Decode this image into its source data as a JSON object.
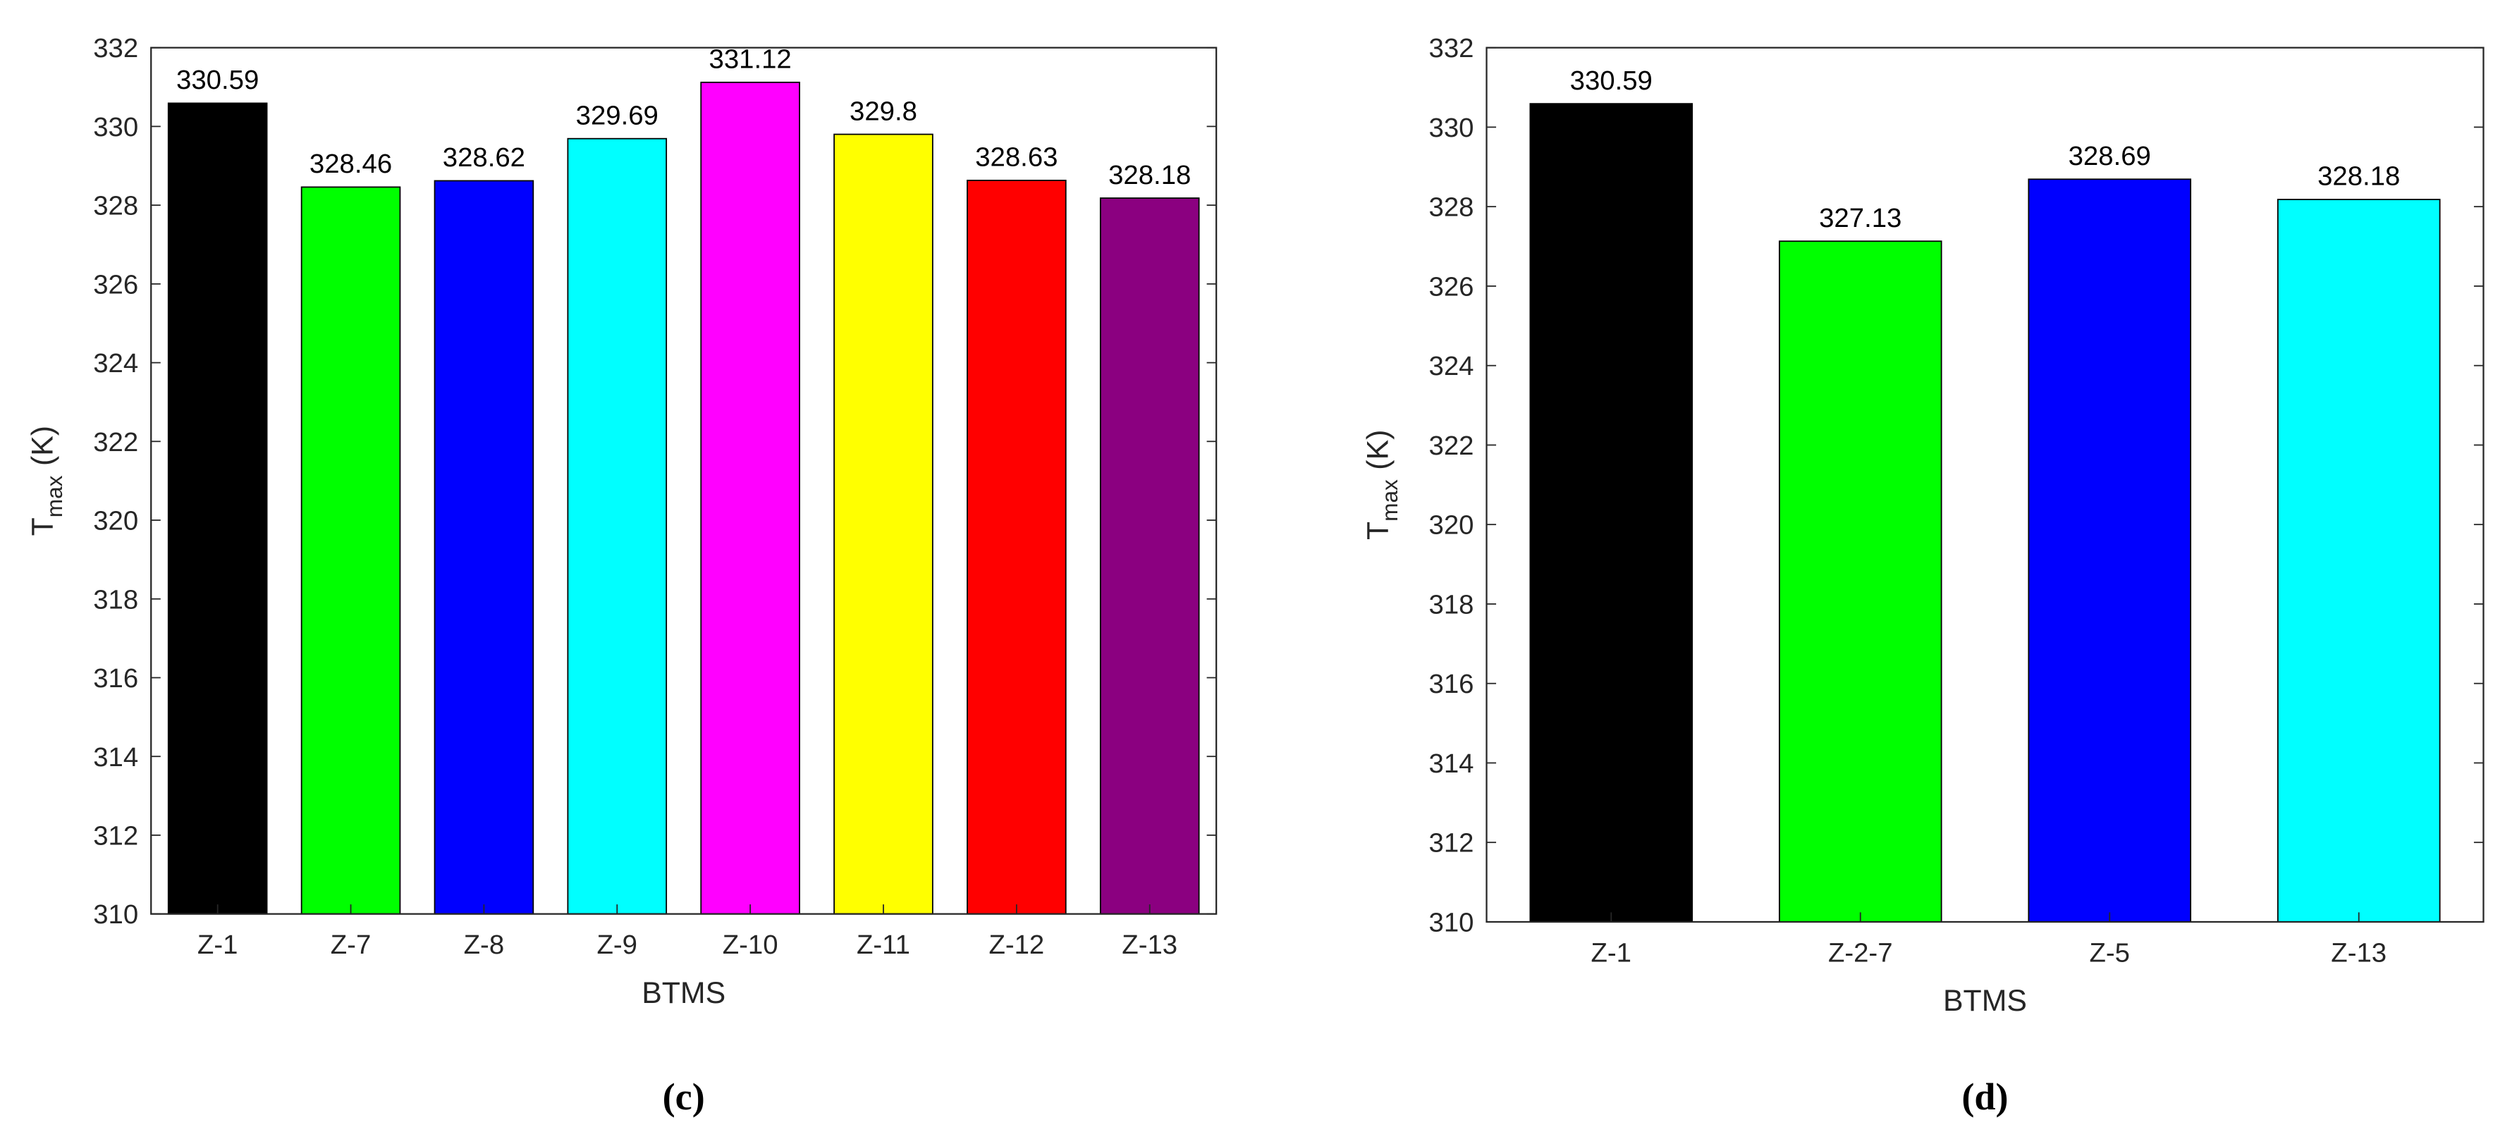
{
  "chart_data": [
    {
      "type": "bar",
      "panel_label": "(c)",
      "xlabel": "BTMS",
      "ylabel": {
        "main": "T",
        "sub": "max",
        "unit": "(K)"
      },
      "categories": [
        "Z-1",
        "Z-7",
        "Z-8",
        "Z-9",
        "Z-10",
        "Z-11",
        "Z-12",
        "Z-13"
      ],
      "values": [
        330.59,
        328.46,
        328.62,
        329.69,
        331.12,
        329.8,
        328.63,
        328.18
      ],
      "colors": [
        "#000000",
        "#00ff00",
        "#0000ff",
        "#00ffff",
        "#ff00ff",
        "#ffff00",
        "#ff0000",
        "#8b0080"
      ],
      "ylim": [
        310,
        332
      ],
      "yticks": [
        310,
        312,
        314,
        316,
        318,
        320,
        322,
        324,
        326,
        328,
        330,
        332
      ],
      "grid": false
    },
    {
      "type": "bar",
      "panel_label": "(d)",
      "xlabel": "BTMS",
      "ylabel": {
        "main": "T",
        "sub": "max",
        "unit": "(K)"
      },
      "categories": [
        "Z-1",
        "Z-2-7",
        "Z-5",
        "Z-13"
      ],
      "values": [
        330.59,
        327.13,
        328.69,
        328.18
      ],
      "colors": [
        "#000000",
        "#00ff00",
        "#0000ff",
        "#00ffff"
      ],
      "ylim": [
        310,
        332
      ],
      "yticks": [
        310,
        312,
        314,
        316,
        318,
        320,
        322,
        324,
        326,
        328,
        330,
        332
      ],
      "grid": false
    }
  ]
}
